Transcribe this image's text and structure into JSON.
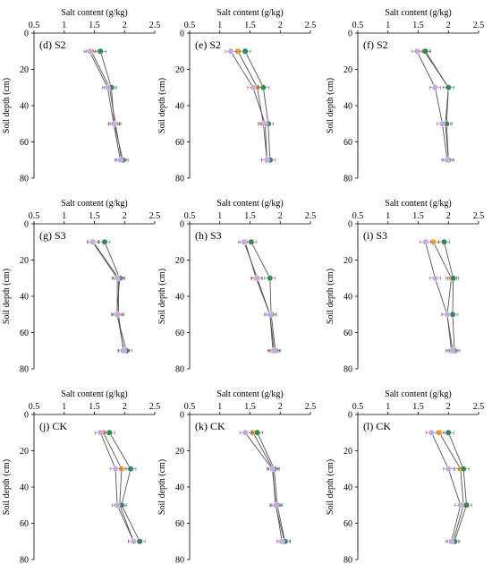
{
  "chart_data": [
    {
      "type": "line",
      "title": "(d) S2",
      "xlabel": "Salt content (g/kg)",
      "ylabel": "Soil depth (cm)",
      "xticks": [
        "0.5",
        "1",
        "1.5",
        "2",
        "2.5"
      ],
      "yticks": [
        "0",
        "20",
        "40",
        "60",
        "80"
      ],
      "xlim": [
        0.5,
        2.5
      ],
      "ylim": [
        0,
        80
      ],
      "y_inverted": true,
      "series": [
        {
          "color": "#f59a23",
          "points": [
            {
              "x": 1.45,
              "y": 10
            },
            {
              "x": 1.75,
              "y": 30
            },
            {
              "x": 1.85,
              "y": 50
            },
            {
              "x": 1.95,
              "y": 70
            }
          ]
        },
        {
          "color": "#2e8b57",
          "points": [
            {
              "x": 1.6,
              "y": 10
            },
            {
              "x": 1.78,
              "y": 30
            },
            {
              "x": 1.83,
              "y": 50
            },
            {
              "x": 1.97,
              "y": 70
            }
          ]
        },
        {
          "color": "#c7a6f0",
          "points": [
            {
              "x": 1.42,
              "y": 10
            },
            {
              "x": 1.72,
              "y": 30
            },
            {
              "x": 1.82,
              "y": 50
            },
            {
              "x": 1.93,
              "y": 70
            }
          ]
        }
      ]
    },
    {
      "type": "line",
      "title": "(e) S2",
      "xlabel": "Salt content (g/kg)",
      "ylabel": "Soil depth (cm)",
      "xticks": [
        "0.5",
        "1",
        "1.5",
        "2",
        "2.5"
      ],
      "yticks": [
        "0",
        "20",
        "40",
        "60",
        "80"
      ],
      "xlim": [
        0.5,
        2.5
      ],
      "ylim": [
        0,
        80
      ],
      "y_inverted": true,
      "series": [
        {
          "color": "#f59a23",
          "points": [
            {
              "x": 1.3,
              "y": 10
            },
            {
              "x": 1.62,
              "y": 30
            },
            {
              "x": 1.72,
              "y": 50
            },
            {
              "x": 1.78,
              "y": 70
            }
          ]
        },
        {
          "color": "#2e8b57",
          "points": [
            {
              "x": 1.42,
              "y": 10
            },
            {
              "x": 1.72,
              "y": 30
            },
            {
              "x": 1.8,
              "y": 50
            },
            {
              "x": 1.83,
              "y": 70
            }
          ]
        },
        {
          "color": "#c7a6f0",
          "points": [
            {
              "x": 1.18,
              "y": 10
            },
            {
              "x": 1.55,
              "y": 30
            },
            {
              "x": 1.75,
              "y": 50
            },
            {
              "x": 1.78,
              "y": 70
            }
          ]
        }
      ]
    },
    {
      "type": "line",
      "title": "(f) S2",
      "xlabel": "Salt content (g/kg)",
      "ylabel": "Soil depth (cm)",
      "xticks": [
        "0.5",
        "1",
        "1.5",
        "2",
        "2.5"
      ],
      "yticks": [
        "0",
        "20",
        "40",
        "60",
        "80"
      ],
      "xlim": [
        0.5,
        2.5
      ],
      "ylim": [
        0,
        80
      ],
      "y_inverted": true,
      "series": [
        {
          "color": "#f59a23",
          "points": [
            {
              "x": 1.6,
              "y": 10
            },
            {
              "x": 2.0,
              "y": 30
            },
            {
              "x": 1.95,
              "y": 50
            },
            {
              "x": 2.0,
              "y": 70
            }
          ]
        },
        {
          "color": "#2e8b57",
          "points": [
            {
              "x": 1.62,
              "y": 10
            },
            {
              "x": 2.0,
              "y": 30
            },
            {
              "x": 1.97,
              "y": 50
            },
            {
              "x": 2.0,
              "y": 70
            }
          ]
        },
        {
          "color": "#c7a6f0",
          "points": [
            {
              "x": 1.48,
              "y": 10
            },
            {
              "x": 1.78,
              "y": 30
            },
            {
              "x": 1.9,
              "y": 50
            },
            {
              "x": 1.98,
              "y": 70
            }
          ]
        }
      ]
    },
    {
      "type": "line",
      "title": "(g) S3",
      "xlabel": "Salt content (g/kg)",
      "ylabel": "Soil depth (cm)",
      "xticks": [
        "0.5",
        "1",
        "1.5",
        "2",
        "2.5"
      ],
      "yticks": [
        "0",
        "20",
        "40",
        "60",
        "80"
      ],
      "xlim": [
        0.5,
        2.5
      ],
      "ylim": [
        0,
        80
      ],
      "y_inverted": true,
      "series": [
        {
          "color": "#f59a23",
          "points": [
            {
              "x": 1.48,
              "y": 10
            },
            {
              "x": 1.9,
              "y": 30
            },
            {
              "x": 1.9,
              "y": 50
            },
            {
              "x": 1.98,
              "y": 70
            }
          ]
        },
        {
          "color": "#2e8b57",
          "points": [
            {
              "x": 1.67,
              "y": 10
            },
            {
              "x": 1.92,
              "y": 30
            },
            {
              "x": 1.87,
              "y": 50
            },
            {
              "x": 2.03,
              "y": 70
            }
          ]
        },
        {
          "color": "#c7a6f0",
          "points": [
            {
              "x": 1.47,
              "y": 10
            },
            {
              "x": 1.88,
              "y": 30
            },
            {
              "x": 1.88,
              "y": 50
            },
            {
              "x": 1.99,
              "y": 70
            }
          ]
        }
      ]
    },
    {
      "type": "line",
      "title": "(h) S3",
      "xlabel": "Salt content (g/kg)",
      "ylabel": "Soil depth (cm)",
      "xticks": [
        "0.5",
        "1",
        "1.5",
        "2",
        "2.5"
      ],
      "yticks": [
        "0",
        "20",
        "40",
        "60",
        "80"
      ],
      "xlim": [
        0.5,
        2.5
      ],
      "ylim": [
        0,
        80
      ],
      "y_inverted": true,
      "series": [
        {
          "color": "#f59a23",
          "points": [
            {
              "x": 1.42,
              "y": 10
            },
            {
              "x": 1.6,
              "y": 30
            },
            {
              "x": 1.83,
              "y": 50
            },
            {
              "x": 1.88,
              "y": 70
            }
          ]
        },
        {
          "color": "#2e8b57",
          "points": [
            {
              "x": 1.52,
              "y": 10
            },
            {
              "x": 1.83,
              "y": 30
            },
            {
              "x": 1.85,
              "y": 50
            },
            {
              "x": 1.92,
              "y": 70
            }
          ]
        },
        {
          "color": "#c7a6f0",
          "points": [
            {
              "x": 1.4,
              "y": 10
            },
            {
              "x": 1.62,
              "y": 30
            },
            {
              "x": 1.83,
              "y": 50
            },
            {
              "x": 1.9,
              "y": 70
            }
          ]
        }
      ]
    },
    {
      "type": "line",
      "title": "(i) S3",
      "xlabel": "Salt content (g/kg)",
      "ylabel": "Soil depth (cm)",
      "xticks": [
        "0.5",
        "1",
        "1.5",
        "2",
        "2.5"
      ],
      "yticks": [
        "0",
        "20",
        "40",
        "60",
        "80"
      ],
      "xlim": [
        0.5,
        2.5
      ],
      "ylim": [
        0,
        80
      ],
      "y_inverted": true,
      "series": [
        {
          "color": "#f59a23",
          "points": [
            {
              "x": 1.75,
              "y": 10
            },
            {
              "x": 2.05,
              "y": 30
            },
            {
              "x": 1.98,
              "y": 50
            },
            {
              "x": 2.05,
              "y": 70
            }
          ]
        },
        {
          "color": "#2e8b57",
          "points": [
            {
              "x": 1.93,
              "y": 10
            },
            {
              "x": 2.08,
              "y": 30
            },
            {
              "x": 2.07,
              "y": 50
            },
            {
              "x": 2.1,
              "y": 70
            }
          ]
        },
        {
          "color": "#c7a6f0",
          "points": [
            {
              "x": 1.62,
              "y": 10
            },
            {
              "x": 1.78,
              "y": 30
            },
            {
              "x": 1.98,
              "y": 50
            },
            {
              "x": 2.07,
              "y": 70
            }
          ]
        }
      ]
    },
    {
      "type": "line",
      "title": "(j) CK",
      "xlabel": "Salt content (g/kg)",
      "ylabel": "Soil depth (cm)",
      "xticks": [
        "0.5",
        "1",
        "1.5",
        "2",
        "2.5"
      ],
      "yticks": [
        "0",
        "20",
        "40",
        "60",
        "80"
      ],
      "xlim": [
        0.5,
        2.5
      ],
      "ylim": [
        0,
        80
      ],
      "y_inverted": true,
      "series": [
        {
          "color": "#f59a23",
          "points": [
            {
              "x": 1.65,
              "y": 10
            },
            {
              "x": 1.95,
              "y": 30
            },
            {
              "x": 1.92,
              "y": 50
            },
            {
              "x": 2.15,
              "y": 70
            }
          ]
        },
        {
          "color": "#2e8b57",
          "points": [
            {
              "x": 1.75,
              "y": 10
            },
            {
              "x": 2.1,
              "y": 30
            },
            {
              "x": 1.95,
              "y": 50
            },
            {
              "x": 2.25,
              "y": 70
            }
          ]
        },
        {
          "color": "#c7a6f0",
          "points": [
            {
              "x": 1.6,
              "y": 10
            },
            {
              "x": 1.85,
              "y": 30
            },
            {
              "x": 1.88,
              "y": 50
            },
            {
              "x": 2.15,
              "y": 70
            }
          ]
        }
      ]
    },
    {
      "type": "line",
      "title": "(k) CK",
      "xlabel": "Salt content (g/kg)",
      "ylabel": "Soil depth (cm)",
      "xticks": [
        "0.5",
        "1",
        "1.5",
        "2",
        "2.5"
      ],
      "yticks": [
        "0",
        "20",
        "40",
        "60",
        "80"
      ],
      "xlim": [
        0.5,
        2.5
      ],
      "ylim": [
        0,
        80
      ],
      "y_inverted": true,
      "series": [
        {
          "color": "#f59a23",
          "points": [
            {
              "x": 1.55,
              "y": 10
            },
            {
              "x": 1.88,
              "y": 30
            },
            {
              "x": 1.92,
              "y": 50
            },
            {
              "x": 2.07,
              "y": 70
            }
          ]
        },
        {
          "color": "#2e8b57",
          "points": [
            {
              "x": 1.62,
              "y": 10
            },
            {
              "x": 1.9,
              "y": 30
            },
            {
              "x": 1.95,
              "y": 50
            },
            {
              "x": 2.08,
              "y": 70
            }
          ]
        },
        {
          "color": "#c7a6f0",
          "points": [
            {
              "x": 1.42,
              "y": 10
            },
            {
              "x": 1.87,
              "y": 30
            },
            {
              "x": 1.93,
              "y": 50
            },
            {
              "x": 2.03,
              "y": 70
            }
          ]
        }
      ]
    },
    {
      "type": "line",
      "title": "(l) CK",
      "xlabel": "Salt content (g/kg)",
      "ylabel": "Soil depth (cm)",
      "xticks": [
        "0.5",
        "1",
        "1.5",
        "2",
        "2.5"
      ],
      "yticks": [
        "0",
        "20",
        "40",
        "60",
        "80"
      ],
      "xlim": [
        0.5,
        2.5
      ],
      "ylim": [
        0,
        80
      ],
      "y_inverted": true,
      "series": [
        {
          "color": "#f59a23",
          "points": [
            {
              "x": 1.85,
              "y": 10
            },
            {
              "x": 2.2,
              "y": 30
            },
            {
              "x": 2.25,
              "y": 50
            },
            {
              "x": 2.08,
              "y": 70
            }
          ]
        },
        {
          "color": "#2e8b57",
          "points": [
            {
              "x": 2.0,
              "y": 10
            },
            {
              "x": 2.25,
              "y": 30
            },
            {
              "x": 2.3,
              "y": 50
            },
            {
              "x": 2.1,
              "y": 70
            }
          ]
        },
        {
          "color": "#c7a6f0",
          "points": [
            {
              "x": 1.72,
              "y": 10
            },
            {
              "x": 2.0,
              "y": 30
            },
            {
              "x": 2.2,
              "y": 50
            },
            {
              "x": 2.05,
              "y": 70
            }
          ]
        }
      ]
    }
  ]
}
